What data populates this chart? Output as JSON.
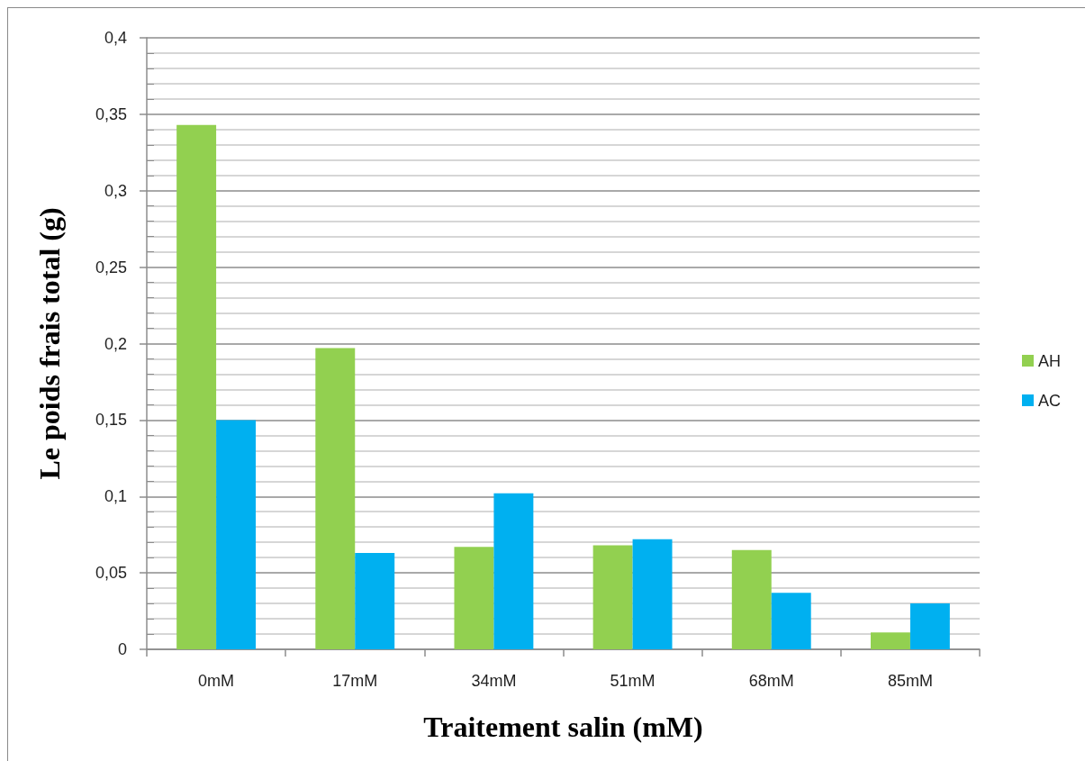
{
  "chart_data": {
    "type": "bar",
    "xlabel": "Traitement salin (mM)",
    "ylabel": "Le poids frais total (g)",
    "categories": [
      "0mM",
      "17mM",
      "34mM",
      "51mM",
      "68mM",
      "85mM"
    ],
    "series": [
      {
        "name": "AH",
        "color": "#92d050",
        "values": [
          0.343,
          0.197,
          0.067,
          0.068,
          0.065,
          0.011
        ]
      },
      {
        "name": "AC",
        "color": "#00b0f0",
        "values": [
          0.15,
          0.063,
          0.102,
          0.072,
          0.037,
          0.03
        ]
      }
    ],
    "ylim": [
      0,
      0.4
    ],
    "yticks": [
      0,
      {
        "value": 0.05,
        "label": "0,05"
      },
      {
        "value": 0.1,
        "label": "0,1"
      },
      {
        "value": 0.15,
        "label": "0,15"
      },
      {
        "value": 0.2,
        "label": "0,2"
      },
      {
        "value": 0.25,
        "label": "0,25"
      },
      {
        "value": 0.3,
        "label": "0,3"
      },
      {
        "value": 0.35,
        "label": "0,35"
      },
      {
        "value": 0.4,
        "label": "0,4"
      }
    ],
    "grid": "y",
    "legend": "right"
  }
}
